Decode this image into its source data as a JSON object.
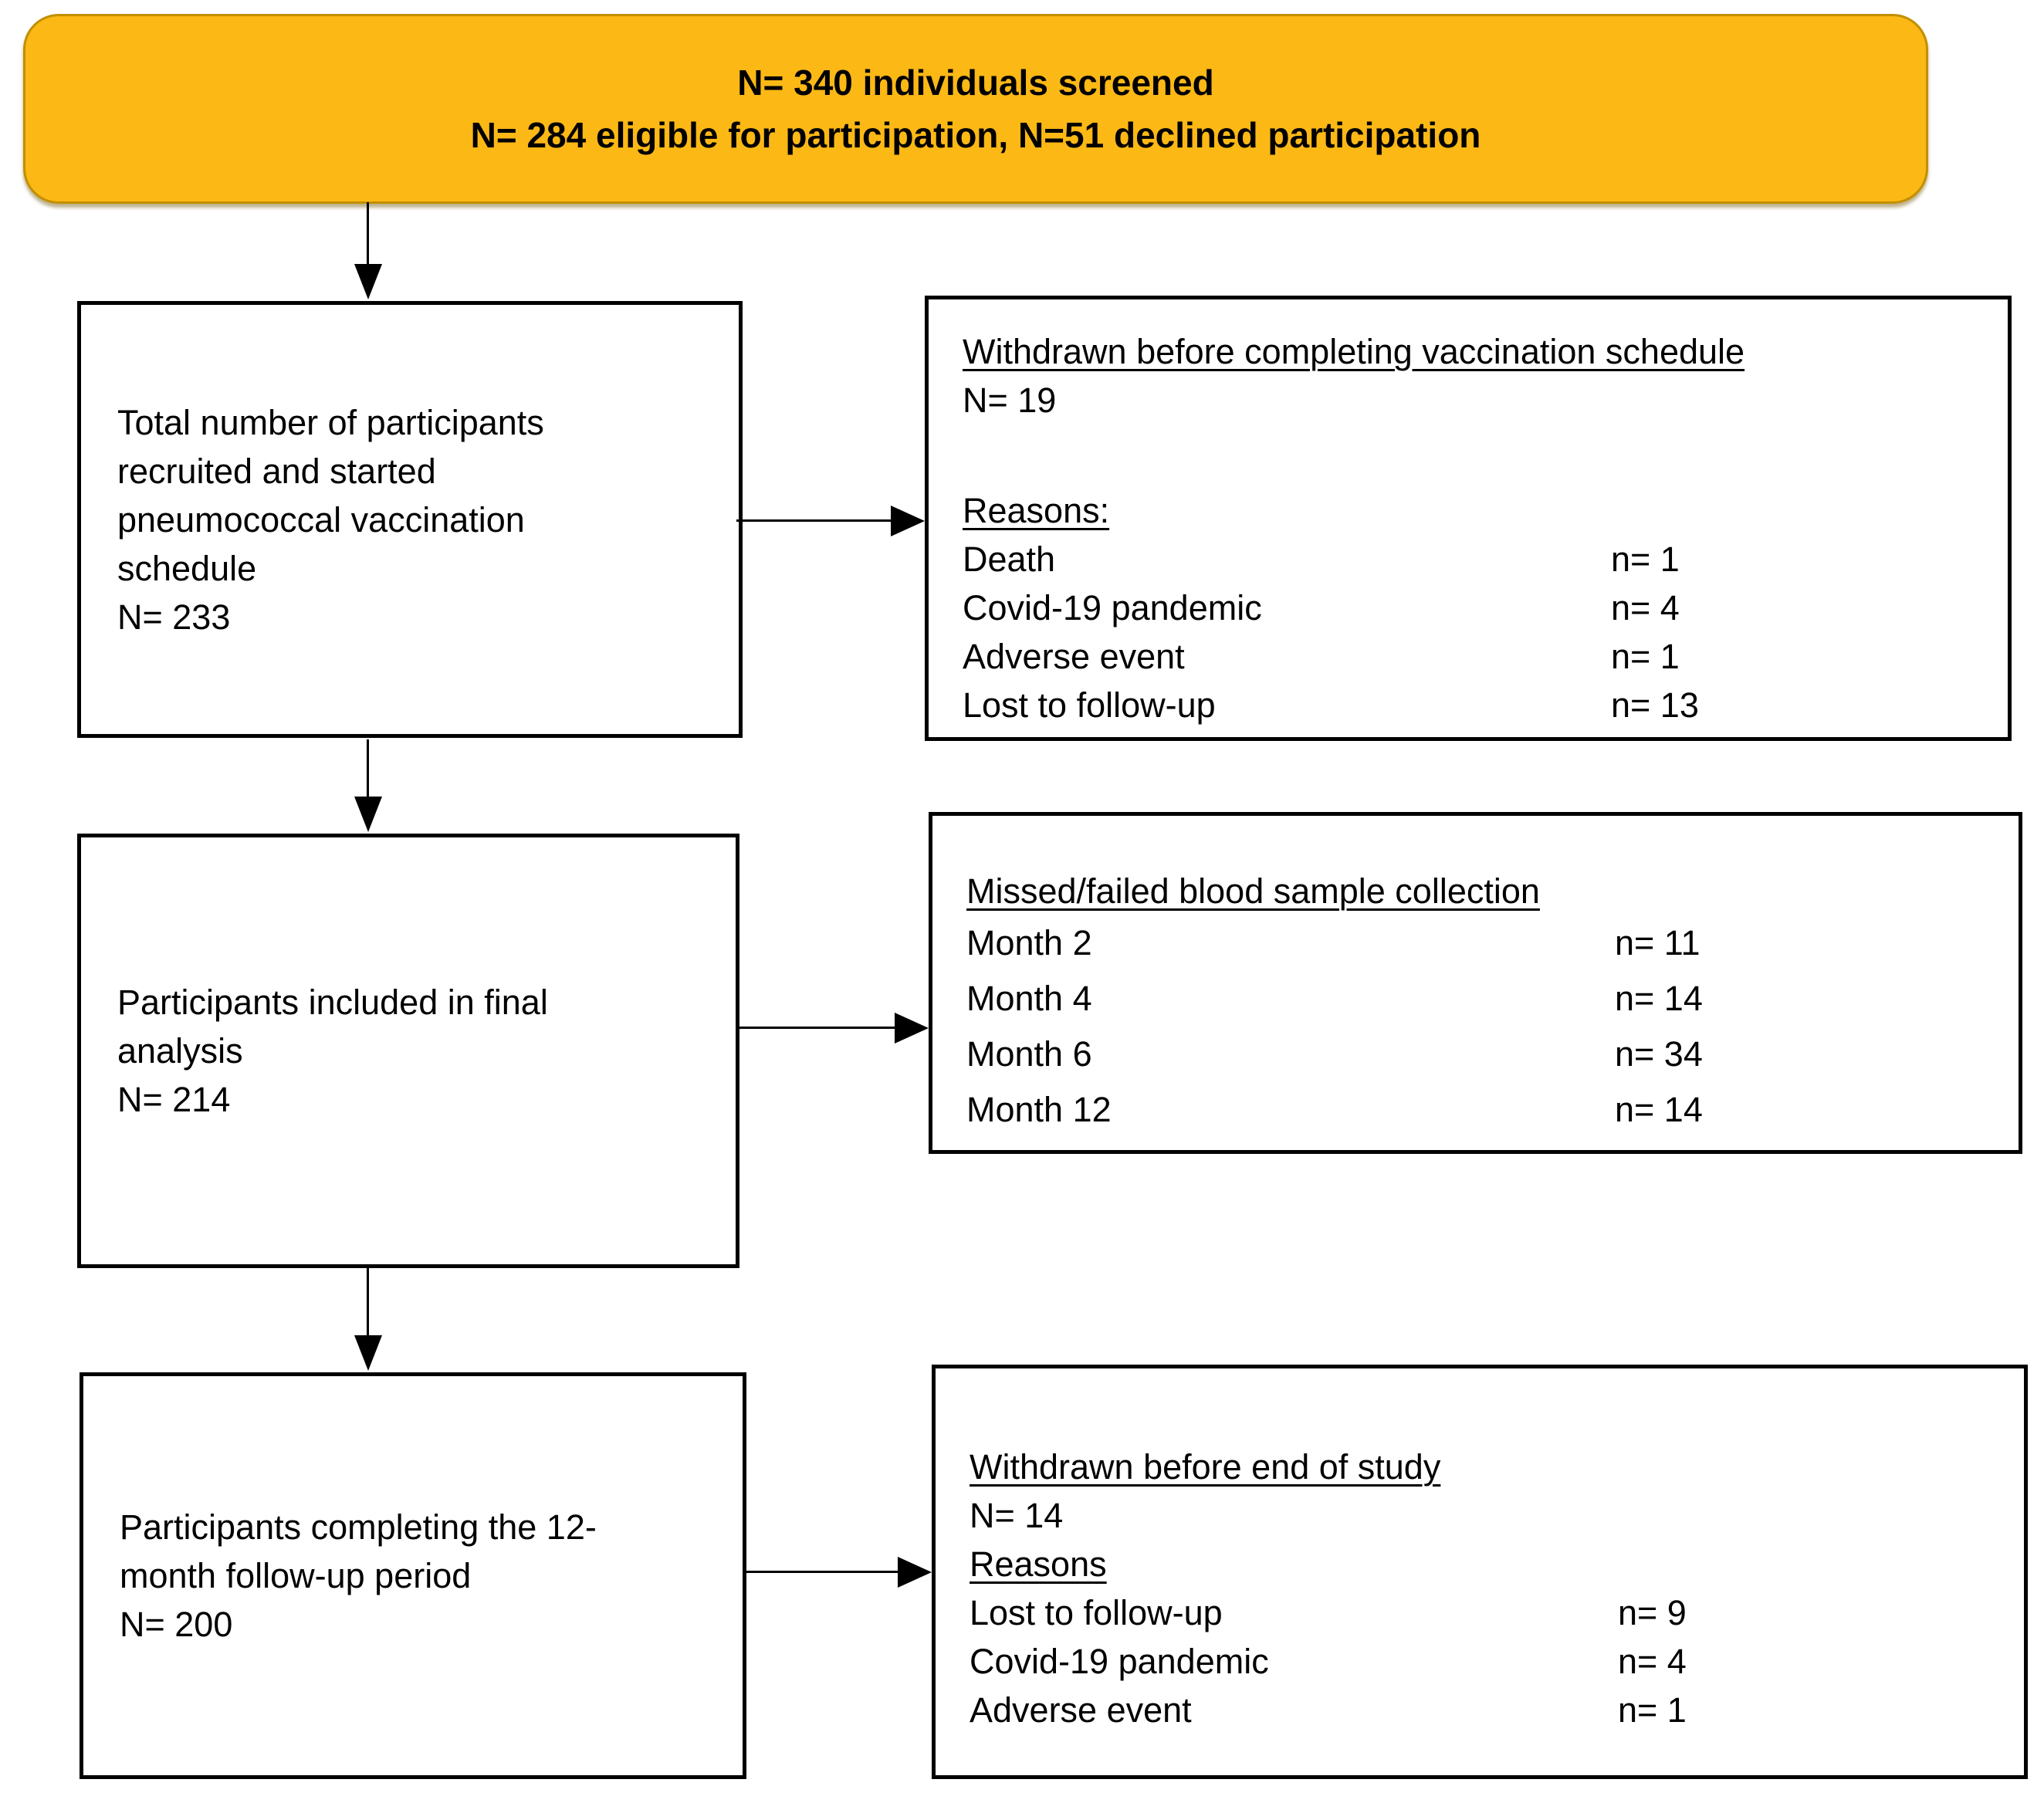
{
  "style": {
    "banner_fill": "#FCB815",
    "banner_border": "#C28F00",
    "box_border": "#000000",
    "connector_color": "#000000"
  },
  "banner": {
    "line1": "N= 340 individuals screened",
    "line2": "N= 284 eligible for participation, N=51 declined participation"
  },
  "left_boxes": {
    "recruited": {
      "lines": [
        "Total number of participants",
        "recruited and started",
        "pneumococcal vaccination",
        "schedule",
        "N= 233"
      ]
    },
    "final_analysis": {
      "lines": [
        "Participants included in final",
        "analysis",
        "N= 214"
      ]
    },
    "completed": {
      "lines": [
        "Participants completing the 12-",
        "month follow-up period",
        "N= 200"
      ]
    }
  },
  "right_boxes": {
    "withdrawn_vaccination": {
      "title": "Withdrawn before completing vaccination schedule",
      "n_line": "N= 19",
      "reasons_label": "Reasons:",
      "rows": [
        {
          "label": "Death",
          "value": "n= 1"
        },
        {
          "label": "Covid-19 pandemic",
          "value": "n= 4"
        },
        {
          "label": "Adverse event",
          "value": "n= 1"
        },
        {
          "label": "Lost to follow-up",
          "value": "n= 13"
        }
      ]
    },
    "missed_samples": {
      "title": "Missed/failed blood sample collection",
      "rows": [
        {
          "label": "Month 2",
          "value": "n= 11"
        },
        {
          "label": "Month 4",
          "value": "n= 14"
        },
        {
          "label": "Month 6",
          "value": "n= 34"
        },
        {
          "label": "Month 12",
          "value": "n= 14"
        }
      ]
    },
    "withdrawn_study": {
      "title": "Withdrawn before end of study",
      "n_line": "N= 14",
      "reasons_label": "Reasons",
      "rows": [
        {
          "label": "Lost to follow-up",
          "value": "n= 9"
        },
        {
          "label": "Covid-19 pandemic",
          "value": "n= 4"
        },
        {
          "label": "Adverse event",
          "value": "n= 1"
        }
      ]
    }
  }
}
